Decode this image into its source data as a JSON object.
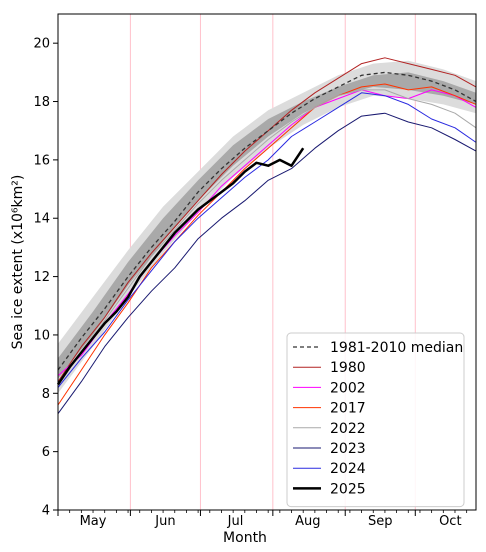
{
  "chart_data": {
    "type": "line",
    "xlabel": "Month",
    "ylabel": "Sea ice extent (x10⁶km²)",
    "ylim": [
      4,
      21
    ],
    "xlim": [
      0,
      179
    ],
    "yticks": [
      4,
      6,
      8,
      10,
      12,
      14,
      16,
      18,
      20
    ],
    "month_labels": [
      {
        "label": "May",
        "day": 15
      },
      {
        "label": "Jun",
        "day": 46
      },
      {
        "label": "Jul",
        "day": 76
      },
      {
        "label": "Aug",
        "day": 107
      },
      {
        "label": "Sep",
        "day": 138
      },
      {
        "label": "Oct",
        "day": 168
      }
    ],
    "month_boundaries": [
      0,
      31,
      61,
      92,
      123,
      153
    ],
    "grid": "vertical month boundaries (light pink)",
    "legend_position": "lower right",
    "bands": {
      "interdecile": {
        "x": [
          0,
          15,
          30,
          45,
          60,
          75,
          90,
          105,
          120,
          135,
          150,
          165,
          179
        ],
        "low": [
          8.0,
          9.6,
          11.3,
          12.8,
          14.2,
          15.4,
          16.4,
          17.2,
          17.8,
          18.2,
          18.1,
          17.9,
          17.6
        ],
        "high": [
          9.7,
          11.3,
          12.9,
          14.4,
          15.6,
          16.8,
          17.7,
          18.3,
          18.9,
          19.3,
          19.4,
          19.1,
          18.7
        ]
      },
      "interquartile": {
        "x": [
          0,
          15,
          30,
          45,
          60,
          75,
          90,
          105,
          120,
          135,
          150,
          165,
          179
        ],
        "low": [
          8.5,
          10.0,
          11.7,
          13.2,
          14.6,
          15.8,
          16.8,
          17.6,
          18.2,
          18.5,
          18.4,
          18.2,
          17.9
        ],
        "high": [
          9.2,
          10.8,
          12.5,
          14.0,
          15.3,
          16.5,
          17.4,
          18.0,
          18.5,
          18.9,
          19.0,
          18.7,
          18.3
        ]
      }
    },
    "series": [
      {
        "name": "1981-2010 median",
        "color": "#333333",
        "dashed": true,
        "width": 1.3,
        "x": [
          0,
          10,
          20,
          30,
          40,
          50,
          60,
          70,
          80,
          90,
          100,
          110,
          120,
          130,
          140,
          150,
          160,
          170,
          179
        ],
        "y": [
          8.8,
          9.9,
          10.9,
          12.0,
          13.0,
          13.9,
          14.9,
          15.7,
          16.4,
          17.0,
          17.6,
          18.1,
          18.5,
          18.9,
          19.0,
          18.9,
          18.7,
          18.4,
          18.0
        ]
      },
      {
        "name": "1980",
        "color": "#b22222",
        "width": 1.0,
        "x": [
          0,
          10,
          20,
          30,
          40,
          50,
          60,
          70,
          80,
          90,
          100,
          110,
          120,
          130,
          140,
          150,
          160,
          170,
          179
        ],
        "y": [
          8.4,
          9.6,
          10.6,
          11.8,
          12.8,
          13.7,
          14.6,
          15.5,
          16.3,
          17.0,
          17.7,
          18.3,
          18.8,
          19.3,
          19.5,
          19.3,
          19.1,
          18.9,
          18.5
        ]
      },
      {
        "name": "2002",
        "color": "#ff00ff",
        "width": 1.0,
        "x": [
          0,
          10,
          20,
          30,
          40,
          50,
          60,
          70,
          80,
          90,
          100,
          110,
          120,
          130,
          140,
          150,
          160,
          170,
          179
        ],
        "y": [
          8.6,
          9.3,
          10.4,
          11.4,
          12.5,
          13.4,
          14.2,
          15.1,
          15.8,
          16.5,
          17.2,
          17.8,
          18.1,
          18.4,
          18.2,
          18.1,
          18.4,
          18.2,
          17.8
        ]
      },
      {
        "name": "2017",
        "color": "#ff3300",
        "width": 1.0,
        "x": [
          0,
          10,
          20,
          30,
          40,
          50,
          60,
          70,
          80,
          90,
          100,
          110,
          120,
          130,
          140,
          150,
          160,
          170,
          179
        ],
        "y": [
          7.6,
          8.8,
          10.0,
          11.1,
          12.3,
          13.2,
          14.1,
          14.9,
          15.7,
          16.4,
          17.1,
          17.8,
          18.2,
          18.5,
          18.6,
          18.4,
          18.5,
          18.2,
          17.9
        ]
      },
      {
        "name": "2022",
        "color": "#a9a9a9",
        "width": 1.0,
        "x": [
          0,
          10,
          20,
          30,
          40,
          50,
          60,
          70,
          80,
          90,
          100,
          110,
          120,
          130,
          140,
          150,
          160,
          170,
          179
        ],
        "y": [
          8.3,
          9.4,
          10.5,
          11.6,
          12.7,
          13.6,
          14.5,
          15.3,
          16.0,
          16.7,
          17.3,
          17.8,
          18.2,
          18.4,
          18.4,
          18.1,
          17.9,
          17.6,
          17.1
        ]
      },
      {
        "name": "2023",
        "color": "#191970",
        "width": 1.0,
        "x": [
          0,
          10,
          20,
          30,
          40,
          50,
          60,
          70,
          80,
          90,
          100,
          110,
          120,
          130,
          140,
          150,
          160,
          170,
          179
        ],
        "y": [
          7.3,
          8.4,
          9.6,
          10.6,
          11.5,
          12.3,
          13.3,
          14.0,
          14.6,
          15.3,
          15.7,
          16.4,
          17.0,
          17.5,
          17.6,
          17.3,
          17.1,
          16.7,
          16.3
        ]
      },
      {
        "name": "2024",
        "color": "#2a2ae0",
        "width": 1.0,
        "x": [
          0,
          10,
          20,
          30,
          40,
          50,
          60,
          70,
          80,
          90,
          100,
          110,
          120,
          130,
          140,
          150,
          160,
          170,
          179
        ],
        "y": [
          8.2,
          9.2,
          10.1,
          11.2,
          12.2,
          13.2,
          14.0,
          14.7,
          15.4,
          16.0,
          16.8,
          17.3,
          17.8,
          18.3,
          18.2,
          17.9,
          17.4,
          17.1,
          16.6
        ]
      },
      {
        "name": "2025",
        "color": "#000000",
        "width": 2.5,
        "x": [
          0,
          5,
          10,
          15,
          20,
          25,
          30,
          35,
          40,
          45,
          50,
          55,
          60,
          65,
          70,
          75,
          80,
          85,
          90,
          95,
          100,
          105
        ],
        "y": [
          8.3,
          8.9,
          9.4,
          9.9,
          10.4,
          10.8,
          11.3,
          12.0,
          12.5,
          13.0,
          13.5,
          13.9,
          14.3,
          14.6,
          14.9,
          15.2,
          15.6,
          15.9,
          15.8,
          16.0,
          15.8,
          16.4
        ]
      }
    ]
  }
}
